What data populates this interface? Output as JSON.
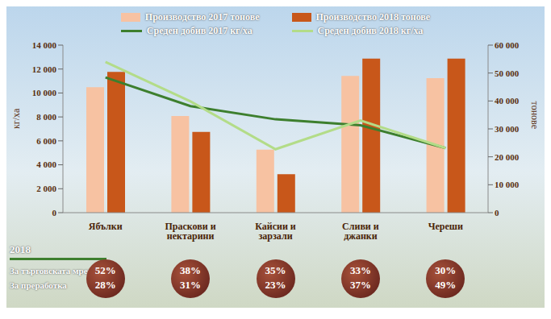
{
  "chart_data": {
    "type": "bar",
    "categories": [
      "Ябълки",
      "Праскови и нектарини",
      "Кайсии и зарзали",
      "Сливи и джанки",
      "Череши"
    ],
    "series": [
      {
        "name": "Производство 2017 тонове",
        "type": "bar",
        "axis": "y2",
        "color": "#f7c2a2",
        "values": [
          44900,
          34600,
          22600,
          49000,
          48200
        ]
      },
      {
        "name": "Производство 2018 тонове",
        "type": "bar",
        "axis": "y2",
        "color": "#c8571a",
        "values": [
          50400,
          28900,
          13800,
          55200,
          55200
        ]
      },
      {
        "name": "Среден добив 2017 кг/ха",
        "type": "line",
        "color": "#3d7f2e",
        "marker": "none",
        "line_style": "solid",
        "values": [
          11300,
          8900,
          7800,
          7300,
          5400
        ]
      },
      {
        "name": "Среден добив 2018 кг/ха",
        "type": "line",
        "color": "#b3dc88",
        "marker": "none",
        "line_style": "solid",
        "values": [
          12600,
          9300,
          5300,
          7700,
          5400
        ]
      }
    ],
    "y_label": "кг/ха",
    "y2_label": "тонове",
    "ylim": [
      0,
      14000
    ],
    "yticks": [
      0,
      {
        "value": 2000,
        "label": "2 000"
      },
      {
        "value": 4000,
        "label": "4 000"
      },
      {
        "value": 6000,
        "label": "6 000"
      },
      {
        "value": 8000,
        "label": "8 000"
      },
      {
        "value": 10000,
        "label": "10 000"
      },
      {
        "value": 12000,
        "label": "12 000"
      },
      {
        "value": 14000,
        "label": "14 000"
      }
    ],
    "y2lim": [
      0,
      60000
    ],
    "y2ticks": [
      0,
      {
        "value": 10000,
        "label": "10 000"
      },
      {
        "value": 20000,
        "label": "20 000"
      },
      {
        "value": 30000,
        "label": "30 000"
      },
      {
        "value": 40000,
        "label": "40 000"
      },
      {
        "value": 50000,
        "label": "50 000"
      },
      {
        "value": 60000,
        "label": "60 000"
      }
    ],
    "legend": "top",
    "grid": false
  },
  "distribution": {
    "title": "2018",
    "rows": [
      {
        "label": "За търговската мрежа",
        "values": [
          52,
          38,
          35,
          33,
          30
        ],
        "value_labels": [
          "52%",
          "38%",
          "35%",
          "33%",
          "30%"
        ]
      },
      {
        "label": "За преработка",
        "values": [
          28,
          31,
          23,
          37,
          49
        ],
        "value_labels": [
          "28%",
          "31%",
          "23%",
          "37%",
          "49%"
        ]
      }
    ]
  }
}
